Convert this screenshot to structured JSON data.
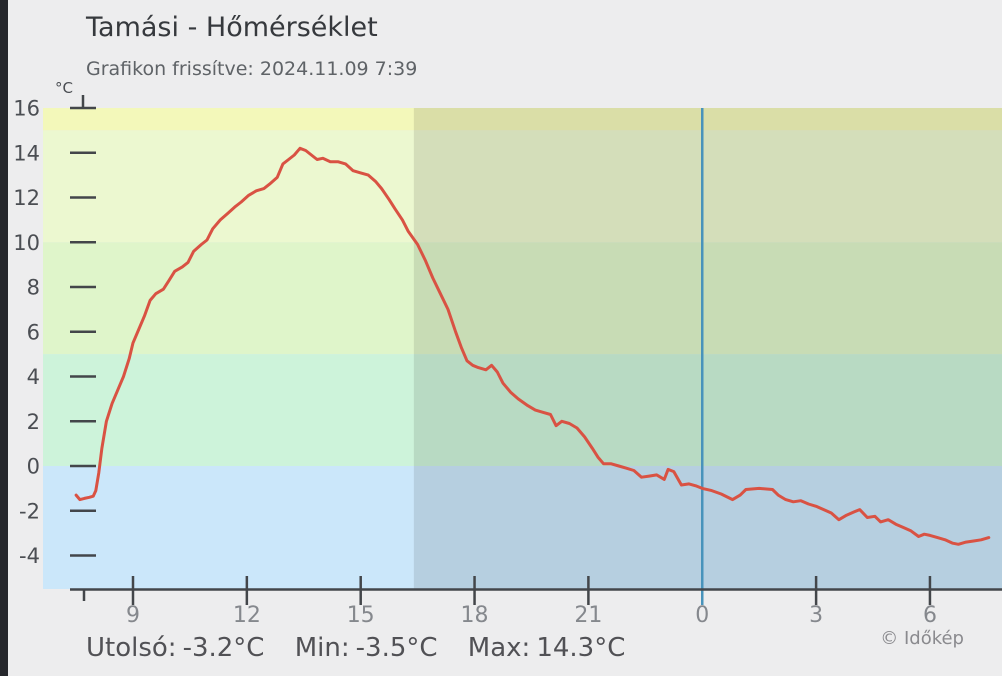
{
  "header": {
    "title": "Tamási - Hőmérséklet",
    "subtitle": "Grafikon frissítve: 2024.11.09 7:39"
  },
  "chart_data": {
    "type": "line",
    "title": "Tamási - Hőmérséklet",
    "updated_text": "Grafikon frissítve: 2024.11.09 7:39",
    "ylabel": "°C",
    "grid": false,
    "legend": false,
    "ylim": [
      -5.5,
      16.2
    ],
    "xlim_hours": [
      6.6,
      31.9
    ],
    "y_ticks": [
      16,
      14,
      12,
      10,
      8,
      6,
      4,
      2,
      0,
      -2,
      -4
    ],
    "x_ticks": [
      {
        "hour": 9,
        "label": "9"
      },
      {
        "hour": 12,
        "label": "12"
      },
      {
        "hour": 15,
        "label": "15"
      },
      {
        "hour": 18,
        "label": "18"
      },
      {
        "hour": 21,
        "label": "21"
      },
      {
        "hour": 24,
        "label": "0"
      },
      {
        "hour": 27,
        "label": "3"
      },
      {
        "hour": 30,
        "label": "6"
      }
    ],
    "bands": [
      {
        "from": 15,
        "to": 16.2,
        "color": "#f3f8ba"
      },
      {
        "from": 10,
        "to": 15,
        "color": "#ecf8d0"
      },
      {
        "from": 5,
        "to": 10,
        "color": "#dff5ca"
      },
      {
        "from": 0,
        "to": 5,
        "color": "#cdf3da"
      },
      {
        "from": -5.5,
        "to": 0,
        "color": "#cbe7fa"
      }
    ],
    "night_from_hour": 16.4,
    "night_overlay_color": "rgba(0,0,0,0.10)",
    "midnight_line": {
      "hour": 24,
      "color": "#4893bb"
    },
    "axis_color": "#43464a",
    "y_label_color": "#4b4e53",
    "x_label_color": "#85888d",
    "series": [
      {
        "name": "Hőmérséklet",
        "color": "#d95243",
        "points": [
          [
            7.5,
            -1.3
          ],
          [
            7.6,
            -1.5
          ],
          [
            7.72,
            -1.45
          ],
          [
            7.85,
            -1.4
          ],
          [
            7.95,
            -1.35
          ],
          [
            8.02,
            -1.1
          ],
          [
            8.1,
            -0.3
          ],
          [
            8.18,
            0.8
          ],
          [
            8.3,
            2.0
          ],
          [
            8.45,
            2.8
          ],
          [
            8.6,
            3.4
          ],
          [
            8.75,
            4.0
          ],
          [
            8.9,
            4.8
          ],
          [
            9.0,
            5.5
          ],
          [
            9.15,
            6.1
          ],
          [
            9.3,
            6.7
          ],
          [
            9.45,
            7.4
          ],
          [
            9.6,
            7.7
          ],
          [
            9.8,
            7.9
          ],
          [
            9.95,
            8.3
          ],
          [
            10.1,
            8.7
          ],
          [
            10.3,
            8.9
          ],
          [
            10.45,
            9.1
          ],
          [
            10.6,
            9.6
          ],
          [
            10.8,
            9.9
          ],
          [
            10.95,
            10.1
          ],
          [
            11.1,
            10.6
          ],
          [
            11.3,
            11.0
          ],
          [
            11.5,
            11.3
          ],
          [
            11.7,
            11.6
          ],
          [
            11.85,
            11.8
          ],
          [
            12.05,
            12.1
          ],
          [
            12.25,
            12.3
          ],
          [
            12.45,
            12.4
          ],
          [
            12.6,
            12.6
          ],
          [
            12.8,
            12.9
          ],
          [
            12.95,
            13.5
          ],
          [
            13.1,
            13.7
          ],
          [
            13.25,
            13.9
          ],
          [
            13.4,
            14.2
          ],
          [
            13.55,
            14.1
          ],
          [
            13.7,
            13.9
          ],
          [
            13.85,
            13.7
          ],
          [
            14.0,
            13.75
          ],
          [
            14.2,
            13.6
          ],
          [
            14.4,
            13.6
          ],
          [
            14.6,
            13.5
          ],
          [
            14.8,
            13.2
          ],
          [
            15.0,
            13.1
          ],
          [
            15.2,
            13.0
          ],
          [
            15.4,
            12.7
          ],
          [
            15.55,
            12.4
          ],
          [
            15.75,
            11.9
          ],
          [
            15.9,
            11.5
          ],
          [
            16.1,
            11.0
          ],
          [
            16.25,
            10.5
          ],
          [
            16.5,
            9.9
          ],
          [
            16.7,
            9.2
          ],
          [
            16.9,
            8.4
          ],
          [
            17.1,
            7.7
          ],
          [
            17.3,
            7.0
          ],
          [
            17.5,
            6.0
          ],
          [
            17.65,
            5.3
          ],
          [
            17.8,
            4.7
          ],
          [
            17.95,
            4.5
          ],
          [
            18.1,
            4.4
          ],
          [
            18.3,
            4.3
          ],
          [
            18.45,
            4.5
          ],
          [
            18.6,
            4.2
          ],
          [
            18.75,
            3.7
          ],
          [
            18.95,
            3.3
          ],
          [
            19.15,
            3.0
          ],
          [
            19.4,
            2.7
          ],
          [
            19.6,
            2.5
          ],
          [
            19.8,
            2.4
          ],
          [
            20.0,
            2.3
          ],
          [
            20.15,
            1.8
          ],
          [
            20.3,
            2.0
          ],
          [
            20.5,
            1.9
          ],
          [
            20.7,
            1.7
          ],
          [
            20.9,
            1.3
          ],
          [
            21.1,
            0.8
          ],
          [
            21.25,
            0.4
          ],
          [
            21.4,
            0.1
          ],
          [
            21.6,
            0.1
          ],
          [
            21.8,
            0.0
          ],
          [
            22.0,
            -0.1
          ],
          [
            22.2,
            -0.2
          ],
          [
            22.4,
            -0.5
          ],
          [
            22.6,
            -0.45
          ],
          [
            22.8,
            -0.4
          ],
          [
            23.0,
            -0.6
          ],
          [
            23.1,
            -0.15
          ],
          [
            23.25,
            -0.25
          ],
          [
            23.45,
            -0.85
          ],
          [
            23.65,
            -0.8
          ],
          [
            23.85,
            -0.9
          ],
          [
            24.0,
            -1.0
          ],
          [
            24.25,
            -1.1
          ],
          [
            24.5,
            -1.25
          ],
          [
            24.8,
            -1.5
          ],
          [
            25.0,
            -1.3
          ],
          [
            25.15,
            -1.05
          ],
          [
            25.5,
            -1.0
          ],
          [
            25.85,
            -1.05
          ],
          [
            26.0,
            -1.3
          ],
          [
            26.2,
            -1.5
          ],
          [
            26.4,
            -1.6
          ],
          [
            26.6,
            -1.55
          ],
          [
            26.8,
            -1.7
          ],
          [
            27.0,
            -1.8
          ],
          [
            27.2,
            -1.95
          ],
          [
            27.4,
            -2.1
          ],
          [
            27.6,
            -2.4
          ],
          [
            27.8,
            -2.2
          ],
          [
            28.0,
            -2.05
          ],
          [
            28.15,
            -1.95
          ],
          [
            28.35,
            -2.3
          ],
          [
            28.55,
            -2.25
          ],
          [
            28.7,
            -2.5
          ],
          [
            28.9,
            -2.4
          ],
          [
            29.1,
            -2.6
          ],
          [
            29.3,
            -2.75
          ],
          [
            29.5,
            -2.9
          ],
          [
            29.7,
            -3.15
          ],
          [
            29.85,
            -3.05
          ],
          [
            30.0,
            -3.1
          ],
          [
            30.2,
            -3.2
          ],
          [
            30.4,
            -3.3
          ],
          [
            30.6,
            -3.45
          ],
          [
            30.75,
            -3.5
          ],
          [
            30.95,
            -3.4
          ],
          [
            31.15,
            -3.35
          ],
          [
            31.35,
            -3.3
          ],
          [
            31.55,
            -3.2
          ]
        ]
      }
    ]
  },
  "stats": {
    "last": {
      "label": "Utolsó:",
      "value": "-3.2°C"
    },
    "min": {
      "label": "Min:",
      "value": "-3.5°C"
    },
    "max": {
      "label": "Max:",
      "value": "14.3°C"
    }
  },
  "footer": {
    "copyright": "© Időkép"
  }
}
